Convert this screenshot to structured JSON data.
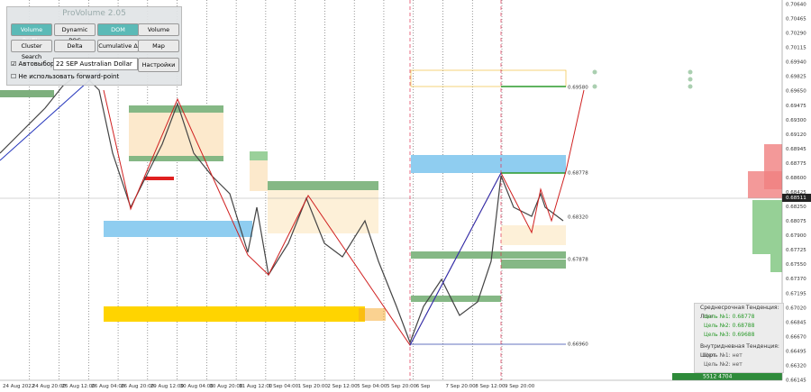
{
  "panel": {
    "title": "ProVolume 2.05",
    "buttons": [
      "Volume Profile",
      "Dynamic POC",
      "DOM",
      "Volume",
      "Cluster Search",
      "Delta",
      "Cumulative Δ",
      "Map"
    ],
    "auto_select": "Автовыбор",
    "instrument": "22 SEP Australian Dollar",
    "settings": "Настройки",
    "forward_point": "Не использовать forward-point"
  },
  "price_axis": [
    "0.70640",
    "0.70465",
    "0.70290",
    "0.70115",
    "0.69940",
    "0.69825",
    "0.69650",
    "0.69475",
    "0.69300",
    "0.69120",
    "0.68945",
    "0.68775",
    "0.68600",
    "0.68425",
    "0.68250",
    "0.68075",
    "0.67900",
    "0.67725",
    "0.67550",
    "0.67370",
    "0.67195",
    "0.67020",
    "0.66845",
    "0.66670",
    "0.66495",
    "0.66320",
    "0.66145"
  ],
  "current_price": "0.68511",
  "time_axis": [
    "24 Aug 2022",
    "24 Aug 20:00",
    "25 Aug 12:00",
    "26 Aug 04:00",
    "26 Aug 20:00",
    "29 Aug 12:00",
    "30 Aug 04:00",
    "30 Aug 20:00",
    "31 Aug 12:00",
    "1 Sep 04:00",
    "1 Sep 20:00",
    "2 Sep 12:00",
    "5 Sep 04:00",
    "5 Sep 20:00",
    "6 Sep",
    "7 Sep 20:00",
    "8 Sep 12:00",
    "9 Sep 20:00"
  ],
  "levels": [
    "0.69580",
    "0.68778",
    "0.68320",
    "0.67878",
    "0.66960"
  ],
  "info": {
    "mid_trend": "Среднесрочная Тенденция: Лонг",
    "mid_targets": [
      "Цель №1: 0.68778",
      "Цель №2: 0.68788",
      "Цель №3: 0.69688"
    ],
    "intraday_trend": "Внутридневная Тенденция: Шорт",
    "intraday_targets": [
      "Цель №1: нет",
      "Цель №2: нет"
    ]
  },
  "volume": "5512 4704"
}
